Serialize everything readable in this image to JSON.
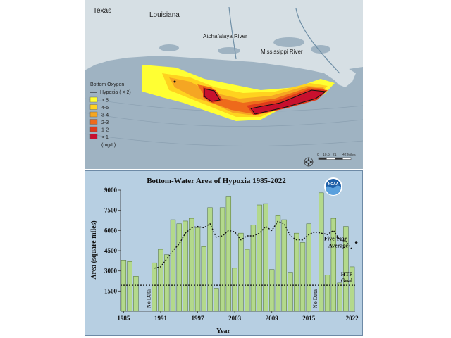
{
  "map": {
    "labels": {
      "texas": "Texas",
      "louisiana": "Louisiana",
      "atchafalaya": "Atchafalaya River",
      "mississippi": "Mississippi River"
    },
    "legend": {
      "title": "Bottom Oxygen",
      "hypoxia_line": "Hypoxia ( < 2)",
      "unit": "(mg/L)",
      "classes": [
        {
          "label": "> 5",
          "color": "#ffff33"
        },
        {
          "label": "4-5",
          "color": "#ffd21f"
        },
        {
          "label": "3-4",
          "color": "#f5a623"
        },
        {
          "label": "2-3",
          "color": "#ee6a1b"
        },
        {
          "label": "1-2",
          "color": "#e03a1b"
        },
        {
          "label": "< 1",
          "color": "#c8102e"
        }
      ]
    },
    "scale": {
      "ticks": [
        "0",
        "10.5",
        "21",
        "42 Miles"
      ]
    },
    "colors": {
      "water": "#9fb3c2",
      "land": "#d6dfe4",
      "hypoxia": "#c8102e"
    }
  },
  "chart_data": {
    "type": "bar",
    "title": "Bottom-Water Area of Hypoxia 1985-2022",
    "xlabel": "Year",
    "ylabel": "Area (square miles)",
    "ylim": [
      0,
      9000
    ],
    "yticks": [
      1500,
      3000,
      4500,
      6000,
      7500,
      9000
    ],
    "xticks": [
      1985,
      1991,
      1997,
      2003,
      2009,
      2015,
      2022
    ],
    "bars": [
      {
        "year": 1985,
        "value": 3800
      },
      {
        "year": 1986,
        "value": 3700
      },
      {
        "year": 1987,
        "value": 2600
      },
      {
        "year": 1990,
        "value": 3600
      },
      {
        "year": 1991,
        "value": 4600
      },
      {
        "year": 1992,
        "value": 4200
      },
      {
        "year": 1993,
        "value": 6800
      },
      {
        "year": 1994,
        "value": 6500
      },
      {
        "year": 1995,
        "value": 6700
      },
      {
        "year": 1996,
        "value": 6900
      },
      {
        "year": 1997,
        "value": 6200
      },
      {
        "year": 1998,
        "value": 4800
      },
      {
        "year": 1999,
        "value": 7700
      },
      {
        "year": 2000,
        "value": 1700
      },
      {
        "year": 2001,
        "value": 7700
      },
      {
        "year": 2002,
        "value": 8500
      },
      {
        "year": 2003,
        "value": 3200
      },
      {
        "year": 2004,
        "value": 5800
      },
      {
        "year": 2005,
        "value": 4600
      },
      {
        "year": 2006,
        "value": 6400
      },
      {
        "year": 2007,
        "value": 7900
      },
      {
        "year": 2008,
        "value": 8000
      },
      {
        "year": 2009,
        "value": 3100
      },
      {
        "year": 2010,
        "value": 7100
      },
      {
        "year": 2011,
        "value": 6800
      },
      {
        "year": 2012,
        "value": 2900
      },
      {
        "year": 2013,
        "value": 5800
      },
      {
        "year": 2014,
        "value": 5100
      },
      {
        "year": 2015,
        "value": 6500
      },
      {
        "year": 2017,
        "value": 8800
      },
      {
        "year": 2018,
        "value": 2700
      },
      {
        "year": 2019,
        "value": 6900
      },
      {
        "year": 2020,
        "value": 2100
      },
      {
        "year": 2021,
        "value": 6300
      },
      {
        "year": 2022,
        "value": 3300
      }
    ],
    "five_year_average": {
      "label_line1": "Five Year",
      "label_line2": "Average",
      "points": [
        {
          "year": 1990,
          "value": 3200
        },
        {
          "year": 1991,
          "value": 3300
        },
        {
          "year": 1992,
          "value": 3900
        },
        {
          "year": 1993,
          "value": 4500
        },
        {
          "year": 1994,
          "value": 5000
        },
        {
          "year": 1995,
          "value": 5800
        },
        {
          "year": 1996,
          "value": 6200
        },
        {
          "year": 1997,
          "value": 6300
        },
        {
          "year": 1998,
          "value": 6200
        },
        {
          "year": 1999,
          "value": 6500
        },
        {
          "year": 2000,
          "value": 5500
        },
        {
          "year": 2001,
          "value": 5600
        },
        {
          "year": 2002,
          "value": 6000
        },
        {
          "year": 2003,
          "value": 5900
        },
        {
          "year": 2004,
          "value": 5300
        },
        {
          "year": 2005,
          "value": 5600
        },
        {
          "year": 2006,
          "value": 5600
        },
        {
          "year": 2007,
          "value": 5800
        },
        {
          "year": 2008,
          "value": 6300
        },
        {
          "year": 2009,
          "value": 6000
        },
        {
          "year": 2010,
          "value": 6700
        },
        {
          "year": 2011,
          "value": 6500
        },
        {
          "year": 2012,
          "value": 5600
        },
        {
          "year": 2013,
          "value": 5300
        },
        {
          "year": 2014,
          "value": 5300
        },
        {
          "year": 2015,
          "value": 5700
        },
        {
          "year": 2016,
          "value": 5900
        },
        {
          "year": 2017,
          "value": 5800
        },
        {
          "year": 2018,
          "value": 5700
        },
        {
          "year": 2019,
          "value": 6000
        },
        {
          "year": 2020,
          "value": 5300
        },
        {
          "year": 2021,
          "value": 5200
        },
        {
          "year": 2022,
          "value": 4600
        }
      ]
    },
    "goal": {
      "value": 1930,
      "label_line1": "HTF",
      "label_line2": "Goal"
    },
    "no_data": [
      {
        "year": 1989,
        "label": "No Data"
      },
      {
        "year": 2016,
        "label": "No Data"
      }
    ],
    "logo_text": "NOAA",
    "colors": {
      "bar": "#b3d98c",
      "bar_stroke": "#4d6b2f",
      "line": "#111111",
      "panel": "#b7cfe2"
    }
  }
}
